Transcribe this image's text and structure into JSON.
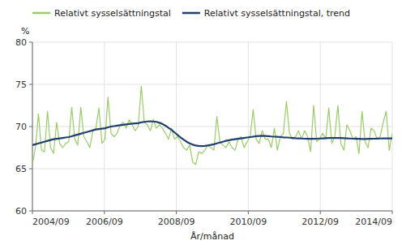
{
  "chart_data": {
    "type": "line",
    "xlabel": "År/månad",
    "ylabel": "%",
    "x": [
      2004.6667,
      2004.7507,
      2004.8347,
      2004.9188,
      2005.0028,
      2005.0868,
      2005.1709,
      2005.2549,
      2005.3389,
      2005.423,
      2005.507,
      2005.591,
      2005.6751,
      2005.7591,
      2005.8431,
      2005.9272,
      2006.0112,
      2006.0952,
      2006.1793,
      2006.2633,
      2006.3473,
      2006.4314,
      2006.5154,
      2006.5994,
      2006.6835,
      2006.7675,
      2006.8515,
      2006.9356,
      2007.0196,
      2007.1036,
      2007.1877,
      2007.2717,
      2007.3557,
      2007.4398,
      2007.5238,
      2007.6078,
      2007.6919,
      2007.7759,
      2007.8599,
      2007.944,
      2008.028,
      2008.112,
      2008.1961,
      2008.2801,
      2008.3641,
      2008.4482,
      2008.5322,
      2008.6162,
      2008.7003,
      2008.7843,
      2008.8683,
      2008.9524,
      2009.0364,
      2009.1204,
      2009.2045,
      2009.2885,
      2009.3725,
      2009.4566,
      2009.5406,
      2009.6246,
      2009.7087,
      2009.7927,
      2009.8768,
      2009.9608,
      2010.0448,
      2010.1289,
      2010.2129,
      2010.2969,
      2010.381,
      2010.465,
      2010.549,
      2010.6331,
      2010.7171,
      2010.8011,
      2010.8852,
      2010.9692,
      2011.0532,
      2011.1373,
      2011.2213,
      2011.3053,
      2011.3894,
      2011.4734,
      2011.5574,
      2011.6415,
      2011.7255,
      2011.8095,
      2011.8936,
      2011.9776,
      2012.0616,
      2012.1457,
      2012.2297,
      2012.3137,
      2012.3978,
      2012.4818,
      2012.5658,
      2012.6499,
      2012.7339,
      2012.8179,
      2012.902,
      2012.986,
      2013.07,
      2013.1541,
      2013.2381,
      2013.3221,
      2013.4062,
      2013.4902,
      2013.5742,
      2013.6583,
      2013.7423,
      2013.8263,
      2013.9104,
      2013.9944,
      2014.0784,
      2014.1625,
      2014.2465,
      2014.3305,
      2014.4146,
      2014.4986,
      2014.5826,
      2014.6667
    ],
    "series": [
      {
        "name": "Relativt sysselsättningstal",
        "color": "#99cc66",
        "values": [
          65.5,
          67.5,
          71.5,
          67.2,
          67.0,
          71.8,
          67.5,
          66.8,
          70.5,
          68.0,
          67.5,
          68.0,
          68.2,
          72.3,
          68.5,
          67.8,
          72.3,
          68.8,
          68.2,
          67.5,
          69.5,
          69.8,
          72.2,
          68.0,
          68.5,
          73.5,
          69.2,
          68.8,
          69.2,
          70.2,
          70.5,
          69.8,
          70.8,
          70.2,
          69.5,
          70.0,
          74.8,
          70.5,
          70.2,
          69.5,
          70.8,
          69.8,
          70.2,
          69.8,
          69.2,
          68.5,
          69.8,
          68.5,
          68.8,
          68.2,
          67.5,
          67.2,
          67.8,
          65.8,
          65.5,
          67.0,
          66.8,
          67.2,
          67.8,
          67.5,
          67.2,
          71.2,
          68.2,
          67.8,
          67.5,
          68.2,
          67.5,
          67.2,
          68.5,
          68.8,
          67.5,
          68.2,
          68.8,
          72.0,
          68.5,
          68.0,
          69.5,
          68.5,
          68.5,
          67.5,
          69.8,
          67.2,
          68.8,
          69.2,
          73.0,
          69.2,
          68.5,
          68.8,
          69.5,
          68.5,
          69.5,
          68.8,
          67.0,
          72.5,
          68.2,
          68.5,
          69.2,
          68.5,
          72.2,
          68.0,
          68.8,
          72.5,
          68.0,
          67.2,
          70.2,
          69.5,
          68.5,
          68.8,
          66.8,
          71.8,
          68.2,
          67.5,
          69.8,
          69.5,
          68.5,
          68.8,
          70.5,
          71.8,
          67.2,
          69.2
        ]
      },
      {
        "name": "Relativt sysselsättningstal, trend",
        "color": "#1f3f6e",
        "values": [
          67.8,
          67.9,
          68.0,
          68.1,
          68.2,
          68.3,
          68.4,
          68.5,
          68.55,
          68.6,
          68.65,
          68.7,
          68.75,
          68.85,
          68.95,
          69.05,
          69.15,
          69.25,
          69.35,
          69.45,
          69.55,
          69.65,
          69.7,
          69.75,
          69.8,
          69.9,
          70.0,
          70.05,
          70.1,
          70.15,
          70.2,
          70.25,
          70.3,
          70.35,
          70.38,
          70.4,
          70.5,
          70.55,
          70.6,
          70.62,
          70.6,
          70.55,
          70.45,
          70.3,
          70.1,
          69.85,
          69.6,
          69.3,
          69.0,
          68.7,
          68.45,
          68.2,
          68.0,
          67.85,
          67.75,
          67.7,
          67.68,
          67.7,
          67.75,
          67.82,
          67.9,
          68.0,
          68.1,
          68.2,
          68.3,
          68.38,
          68.45,
          68.5,
          68.55,
          68.6,
          68.65,
          68.7,
          68.75,
          68.8,
          68.85,
          68.88,
          68.9,
          68.88,
          68.85,
          68.82,
          68.8,
          68.78,
          68.75,
          68.72,
          68.7,
          68.68,
          68.65,
          68.62,
          68.6,
          68.58,
          68.56,
          68.55,
          68.54,
          68.55,
          68.56,
          68.58,
          68.6,
          68.62,
          68.64,
          68.65,
          68.65,
          68.65,
          68.64,
          68.62,
          68.6,
          68.58,
          68.56,
          68.55,
          68.54,
          68.53,
          68.53,
          68.54,
          68.55,
          68.56,
          68.57,
          68.58,
          68.59,
          68.6,
          68.6,
          68.6
        ]
      }
    ],
    "xlim": [
      2004.6667,
      2014.6667
    ],
    "xticks": [
      {
        "value": 2004.6667,
        "label": "2004/09"
      },
      {
        "value": 2006.6667,
        "label": "2006/09"
      },
      {
        "value": 2008.6667,
        "label": "2008/09"
      },
      {
        "value": 2010.6667,
        "label": "2010/09"
      },
      {
        "value": 2012.6667,
        "label": "2012/09"
      },
      {
        "value": 2014.6667,
        "label": "2014/09"
      }
    ],
    "ylim": [
      60,
      80
    ],
    "yticks": [
      60,
      65,
      70,
      75,
      80
    ],
    "grid": true,
    "legend": "top"
  }
}
